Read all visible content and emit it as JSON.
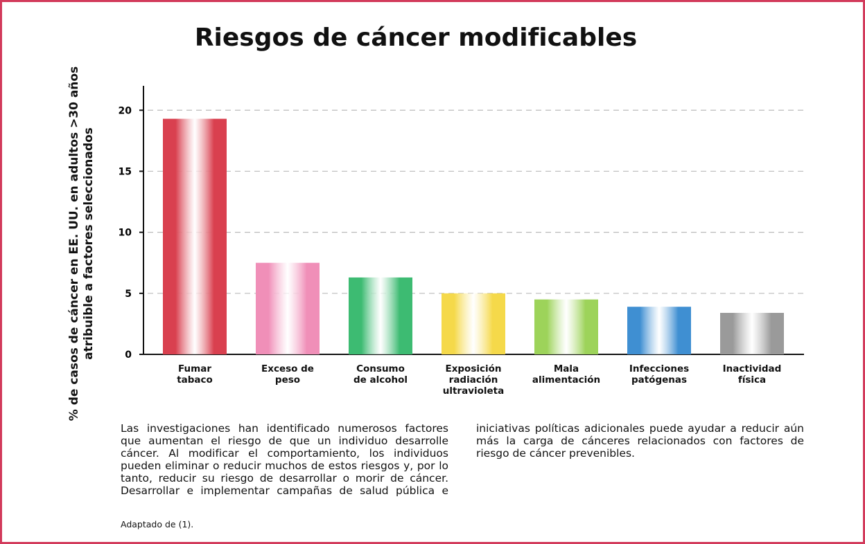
{
  "chart_data": {
    "type": "bar",
    "title": "Riesgos de cáncer modificables",
    "y_label": "% de casos de cáncer en EE. UU. en adultos >30 años\natribuible a factores seleccionados",
    "categories": [
      "Fumar\ntabaco",
      "Exceso de\npeso",
      "Consumo\nde alcohol",
      "Exposición\nradiación\nultravioleta",
      "Mala\nalimentación",
      "Infecciones\npatógenas",
      "Inactividad\nfísica"
    ],
    "values": [
      19.3,
      7.5,
      6.3,
      5.0,
      4.5,
      3.9,
      3.4
    ],
    "colors": [
      "#d9404f",
      "#f08fb8",
      "#3dbb72",
      "#f5d94a",
      "#9dd35a",
      "#3f8fd2",
      "#9a9a9a"
    ],
    "ylim": [
      0,
      22
    ],
    "yticks": [
      0,
      5,
      10,
      15,
      20
    ],
    "grid": true
  },
  "body": {
    "paragraph": "Las investigaciones han identificado numerosos factores que aumentan el riesgo de que un individuo desarrolle cáncer. Al modificar el comportamiento, los individuos pueden eliminar o reducir muchos de estos riesgos y, por lo tanto, reducir su riesgo de desarrollar o morir de cáncer. Desarrollar e implementar campañas de salud pública e iniciativas políticas adicionales puede ayudar a reducir aún más la carga de cánceres relacionados con factores de riesgo de cáncer prevenibles.",
    "source": "Adaptado de (1)."
  }
}
